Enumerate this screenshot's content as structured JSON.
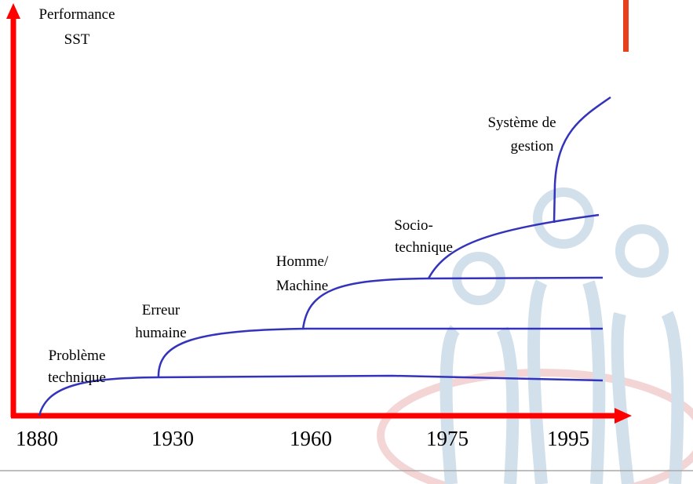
{
  "y_axis_label": [
    "Performance",
    "SST"
  ],
  "x_labels": [
    "1880",
    "1930",
    "1960",
    "1975",
    "1995"
  ],
  "stages": [
    {
      "lines": [
        "Problème",
        "technique"
      ]
    },
    {
      "lines": [
        "Erreur",
        "humaine"
      ]
    },
    {
      "lines": [
        "Homme/",
        "Machine"
      ]
    },
    {
      "lines": [
        "Socio-",
        "technique"
      ]
    },
    {
      "lines": [
        "Système de",
        "gestion"
      ]
    }
  ]
}
